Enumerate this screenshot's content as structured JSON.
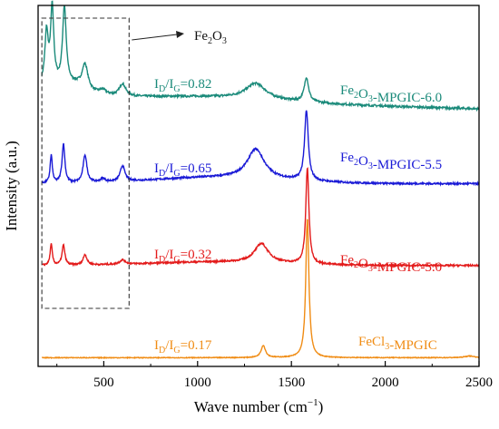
{
  "chart_data": {
    "type": "line",
    "xlabel": "Wave number (cm",
    "xlabel_sup": "−1",
    "xlabel_end": ")",
    "ylabel": "Intensity (a.u.)",
    "xlim": [
      150,
      2500
    ],
    "xticks": [
      500,
      1000,
      1500,
      2000,
      2500
    ],
    "xtick_labels": [
      "500",
      "1000",
      "1500",
      "2000",
      "2500"
    ],
    "y_ticks_shown": false,
    "grid": false,
    "box_annotation": {
      "x_range": [
        170,
        635
      ],
      "label_base": "Fe",
      "label_sub1": "2",
      "label_mid": "O",
      "label_sub2": "3"
    },
    "series": [
      {
        "name": "Fe₂O₃-MPGIC-6.0",
        "label_parts": [
          "Fe",
          "2",
          "O",
          "3",
          "-MPGIC-6.0"
        ],
        "ratio_label": [
          "I",
          "D",
          "/I",
          "G",
          "=0.82"
        ],
        "color": "#1a8a7a",
        "offset": 3.0,
        "noise": 0.012,
        "peaks": [
          [
            195,
            0.55,
            10
          ],
          [
            225,
            0.85,
            10
          ],
          [
            290,
            0.9,
            12
          ],
          [
            400,
            0.28,
            18
          ],
          [
            495,
            0.05,
            20
          ],
          [
            600,
            0.14,
            20
          ],
          [
            1310,
            0.18,
            65
          ],
          [
            1580,
            0.28,
            14
          ],
          [
            200,
            0.15,
            60
          ],
          [
            350,
            0.12,
            80
          ]
        ],
        "baseline_start": 0.0,
        "baseline_end": -0.14,
        "bump": 0.05
      },
      {
        "name": "Fe₂O₃-MPGIC-5.5",
        "label_parts": [
          "Fe",
          "2",
          "O",
          "3",
          "-MPGIC-5.5"
        ],
        "ratio_label": [
          "I",
          "D",
          "/I",
          "G",
          "=0.65"
        ],
        "color": "#1a1ad6",
        "offset": 2.0,
        "noise": 0.01,
        "peaks": [
          [
            220,
            0.32,
            7
          ],
          [
            285,
            0.45,
            9
          ],
          [
            400,
            0.32,
            12
          ],
          [
            495,
            0.04,
            15
          ],
          [
            600,
            0.18,
            15
          ],
          [
            1310,
            0.34,
            55
          ],
          [
            1580,
            0.8,
            12
          ]
        ],
        "baseline_start": 0.0,
        "baseline_end": 0.0,
        "bump": 0.07
      },
      {
        "name": "Fe₂O₃-MPGIC-5.0",
        "label_parts": [
          "Fe",
          "2",
          "O",
          "3",
          "-MPGIC-5.0"
        ],
        "ratio_label": [
          "I",
          "D",
          "/I",
          "G",
          "=0.32"
        ],
        "color": "#e31a1a",
        "offset": 1.06,
        "noise": 0.009,
        "peaks": [
          [
            220,
            0.24,
            7
          ],
          [
            285,
            0.23,
            9
          ],
          [
            400,
            0.12,
            12
          ],
          [
            600,
            0.05,
            18
          ],
          [
            1340,
            0.22,
            45
          ],
          [
            1585,
            1.1,
            10
          ]
        ],
        "baseline_start": 0.0,
        "baseline_end": 0.0,
        "bump": 0.04
      },
      {
        "name": "FeCl₃-MPGIC",
        "label_parts": [
          "FeCl",
          "3",
          "-MPGIC",
          "",
          ""
        ],
        "ratio_label": [
          "I",
          "D",
          "/I",
          "G",
          "=0.17"
        ],
        "color": "#f08c14",
        "offset": 0.0,
        "noise": 0.004,
        "peaks": [
          [
            1350,
            0.14,
            14
          ],
          [
            1585,
            1.6,
            10
          ],
          [
            2450,
            0.02,
            30
          ]
        ],
        "baseline_start": 0.0,
        "baseline_end": 0.0,
        "bump": 0.0
      }
    ]
  }
}
